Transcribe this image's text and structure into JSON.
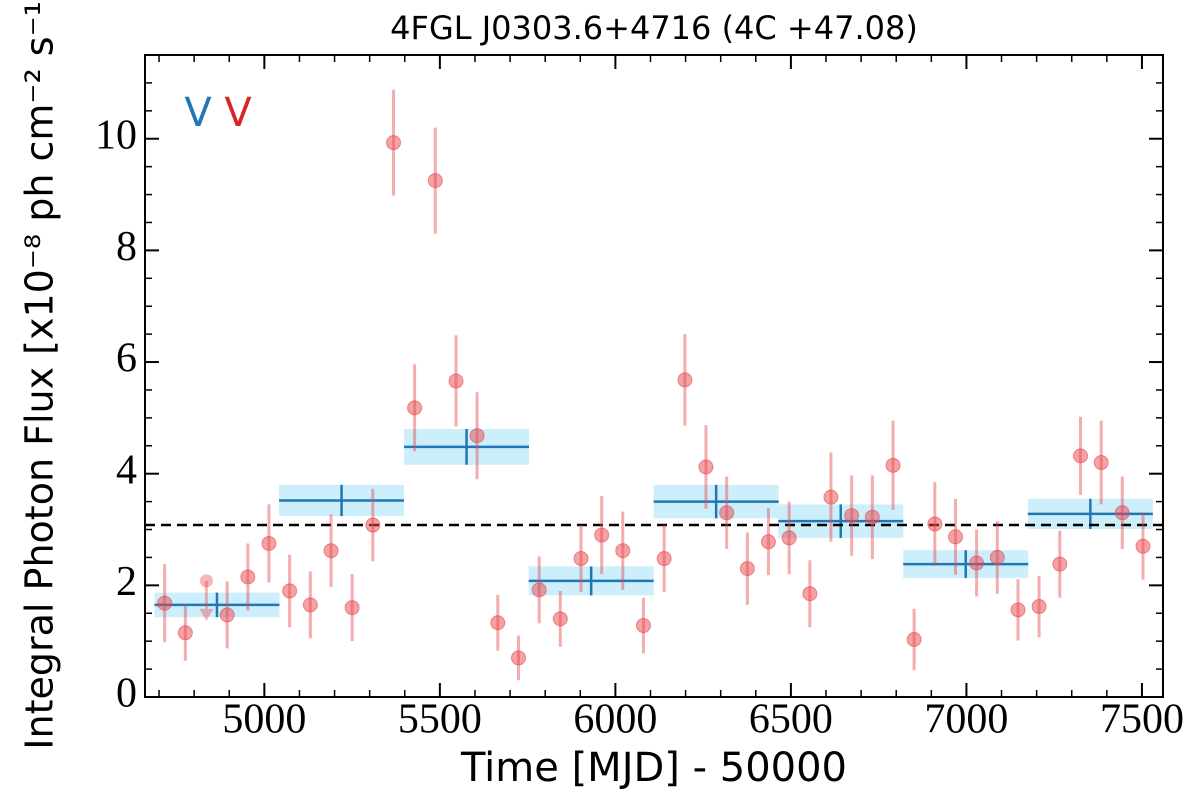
{
  "chart_data": {
    "type": "errorbar",
    "title": "4FGL J0303.6+4716 (4C +47.08)",
    "x_label": "Time [MJD] - 50000",
    "y_label": "Integral Photon Flux [x10⁻⁸ ph cm⁻² s⁻¹]",
    "xlim": [
      4660,
      7560
    ],
    "ylim": [
      0,
      11.5
    ],
    "xticks": [
      5000,
      5500,
      6000,
      6500,
      7000,
      7500
    ],
    "yticks": [
      0,
      2,
      4,
      6,
      8,
      10
    ],
    "reference_line": 3.08,
    "annotations": [
      {
        "text": "V",
        "color": "#1f77b4"
      },
      {
        "text": "V",
        "color": "#d62728"
      }
    ],
    "series": [
      {
        "style": "points",
        "color": "#e8474e",
        "x": [
          4716,
          4775,
          4894,
          4953,
          5013,
          5072,
          5131,
          5190,
          5250,
          5309,
          5368,
          5428,
          5487,
          5546,
          5606,
          5665,
          5724,
          5783,
          5843,
          5902,
          5961,
          6021,
          6080,
          6139,
          6198,
          6258,
          6317,
          6376,
          6436,
          6495,
          6554,
          6614,
          6673,
          6732,
          6791,
          6851,
          6910,
          6969,
          7029,
          7088,
          7147,
          7207,
          7266,
          7325,
          7384,
          7444,
          7503
        ],
        "values": [
          1.68,
          1.15,
          1.47,
          2.15,
          2.75,
          1.9,
          1.65,
          2.62,
          1.6,
          3.08,
          9.93,
          5.18,
          9.25,
          5.66,
          4.68,
          1.33,
          0.7,
          1.92,
          1.4,
          2.48,
          2.9,
          2.62,
          1.28,
          2.48,
          5.68,
          4.12,
          3.3,
          2.3,
          2.78,
          2.85,
          1.85,
          3.58,
          3.25,
          3.22,
          4.15,
          1.03,
          3.1,
          2.87,
          2.4,
          2.5,
          1.56,
          1.62,
          2.38,
          4.32,
          4.2,
          3.3,
          2.7
        ],
        "errors": [
          0.7,
          0.5,
          0.6,
          0.6,
          0.7,
          0.65,
          0.6,
          0.65,
          0.6,
          0.65,
          0.95,
          0.78,
          0.95,
          0.82,
          0.78,
          0.5,
          0.4,
          0.6,
          0.5,
          0.6,
          0.7,
          0.7,
          0.5,
          0.6,
          0.82,
          0.75,
          0.65,
          0.65,
          0.6,
          0.65,
          0.6,
          0.8,
          0.72,
          0.75,
          0.8,
          0.55,
          0.75,
          0.68,
          0.6,
          0.65,
          0.55,
          0.55,
          0.6,
          0.7,
          0.75,
          0.65,
          0.6
        ]
      },
      {
        "style": "upper_limits",
        "color": "#e8474e",
        "x": [
          4835
        ],
        "values": [
          2.08
        ]
      },
      {
        "style": "bins",
        "color": "#1f77b4",
        "band_color": "#cdeefb",
        "x": [
          4865,
          5220,
          5576,
          5931,
          6287,
          6642,
          6998,
          7353
        ],
        "xerr": [
          178,
          178,
          178,
          178,
          178,
          178,
          178,
          178
        ],
        "values": [
          1.65,
          3.52,
          4.48,
          2.08,
          3.5,
          3.15,
          2.38,
          3.28
        ],
        "errors": [
          0.22,
          0.28,
          0.32,
          0.26,
          0.3,
          0.3,
          0.25,
          0.27
        ]
      }
    ]
  }
}
